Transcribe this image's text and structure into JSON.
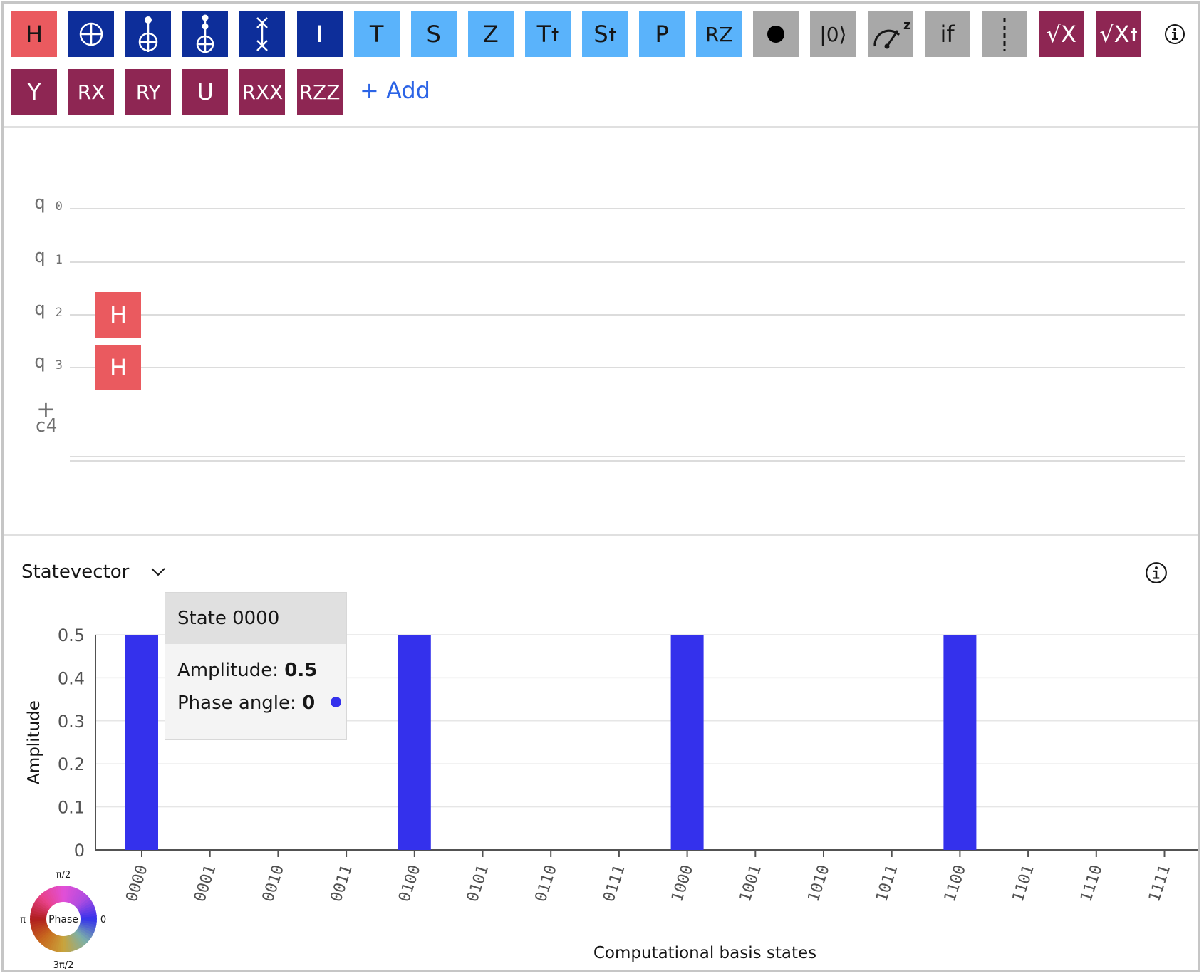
{
  "palette": {
    "gates": [
      {
        "id": "h",
        "label": "H",
        "bg": "#ea5a5f",
        "dark": true
      },
      {
        "id": "cnot",
        "label": "",
        "bg": "#0d2e9a",
        "icon": "cnot-icon"
      },
      {
        "id": "toffoli",
        "label": "",
        "bg": "#0d2e9a",
        "icon": "toffoli-icon"
      },
      {
        "id": "cccx",
        "label": "",
        "bg": "#0d2e9a",
        "icon": "multi-controlled-x-icon"
      },
      {
        "id": "swap",
        "label": "",
        "bg": "#0d2e9a",
        "icon": "swap-icon"
      },
      {
        "id": "i",
        "label": "I",
        "bg": "#0d2e9a"
      },
      {
        "id": "t",
        "label": "T",
        "bg": "#5ab3fb",
        "dark": true
      },
      {
        "id": "s",
        "label": "S",
        "bg": "#5ab3fb",
        "dark": true
      },
      {
        "id": "z",
        "label": "Z",
        "bg": "#5ab3fb",
        "dark": true
      },
      {
        "id": "tdg",
        "label": "T",
        "sup": "†",
        "bg": "#5ab3fb",
        "dark": true
      },
      {
        "id": "sdg",
        "label": "S",
        "sup": "†",
        "bg": "#5ab3fb",
        "dark": true
      },
      {
        "id": "p",
        "label": "P",
        "bg": "#5ab3fb",
        "dark": true
      },
      {
        "id": "rz",
        "label": "RZ",
        "bg": "#5ab3fb",
        "dark": true,
        "small": true
      },
      {
        "id": "barrier-dot",
        "label": "",
        "bg": "#a8a8a8",
        "icon": "control-dot-icon"
      },
      {
        "id": "reset",
        "label": "|0⟩",
        "bg": "#a8a8a8",
        "dark": true,
        "small": true
      },
      {
        "id": "measure",
        "label": "",
        "bg": "#a8a8a8",
        "icon": "measure-icon"
      },
      {
        "id": "if",
        "label": "if",
        "bg": "#a8a8a8",
        "dark": true
      },
      {
        "id": "barrier",
        "label": "",
        "bg": "#a8a8a8",
        "icon": "barrier-icon"
      },
      {
        "id": "sx",
        "label": "√X",
        "bg": "#8e2653"
      },
      {
        "id": "sxdg",
        "label": "√X",
        "sup": "†",
        "bg": "#8e2653"
      },
      {
        "id": "y",
        "label": "Y",
        "bg": "#8e2653"
      },
      {
        "id": "rx",
        "label": "RX",
        "bg": "#8e2653",
        "small": true
      },
      {
        "id": "ry",
        "label": "RY",
        "bg": "#8e2653",
        "small": true
      },
      {
        "id": "u",
        "label": "U",
        "bg": "#8e2653"
      },
      {
        "id": "rxx",
        "label": "RXX",
        "bg": "#8e2653",
        "small": true
      },
      {
        "id": "rzz",
        "label": "RZZ",
        "bg": "#8e2653",
        "small": true
      }
    ],
    "add_label": "+ Add"
  },
  "circuit": {
    "qubits": [
      {
        "name": "q",
        "index": "0"
      },
      {
        "name": "q",
        "index": "1"
      },
      {
        "name": "q",
        "index": "2"
      },
      {
        "name": "q",
        "index": "3"
      }
    ],
    "classical": "c4",
    "add_qubit": "+",
    "placed_gates": [
      {
        "label": "H",
        "qubit": 2
      },
      {
        "label": "H",
        "qubit": 3
      }
    ]
  },
  "visualization": {
    "selector": "Statevector",
    "tooltip": {
      "state": "State 0000",
      "amplitude_label": "Amplitude:",
      "amplitude_value": "0.5",
      "phase_label": "Phase angle:",
      "phase_value": "0",
      "phase_color": "#3431ec"
    },
    "phase_wheel": {
      "center": "Phase",
      "top": "π/2",
      "left": "π",
      "right": "0",
      "bottom": "3π/2"
    }
  },
  "chart_data": {
    "type": "bar",
    "categories": [
      "0000",
      "0001",
      "0010",
      "0011",
      "0100",
      "0101",
      "0110",
      "0111",
      "1000",
      "1001",
      "1010",
      "1011",
      "1100",
      "1101",
      "1110",
      "1111"
    ],
    "values": [
      0.5,
      0,
      0,
      0,
      0.5,
      0,
      0,
      0,
      0.5,
      0,
      0,
      0,
      0.5,
      0,
      0,
      0
    ],
    "bar_color": "#3431ec",
    "title": "",
    "xlabel": "Computational basis states",
    "ylabel": "Amplitude",
    "ylim": [
      0,
      0.5
    ],
    "yticks": [
      "0",
      "0.1",
      "0.2",
      "0.3",
      "0.4",
      "0.5"
    ],
    "grid": true
  }
}
